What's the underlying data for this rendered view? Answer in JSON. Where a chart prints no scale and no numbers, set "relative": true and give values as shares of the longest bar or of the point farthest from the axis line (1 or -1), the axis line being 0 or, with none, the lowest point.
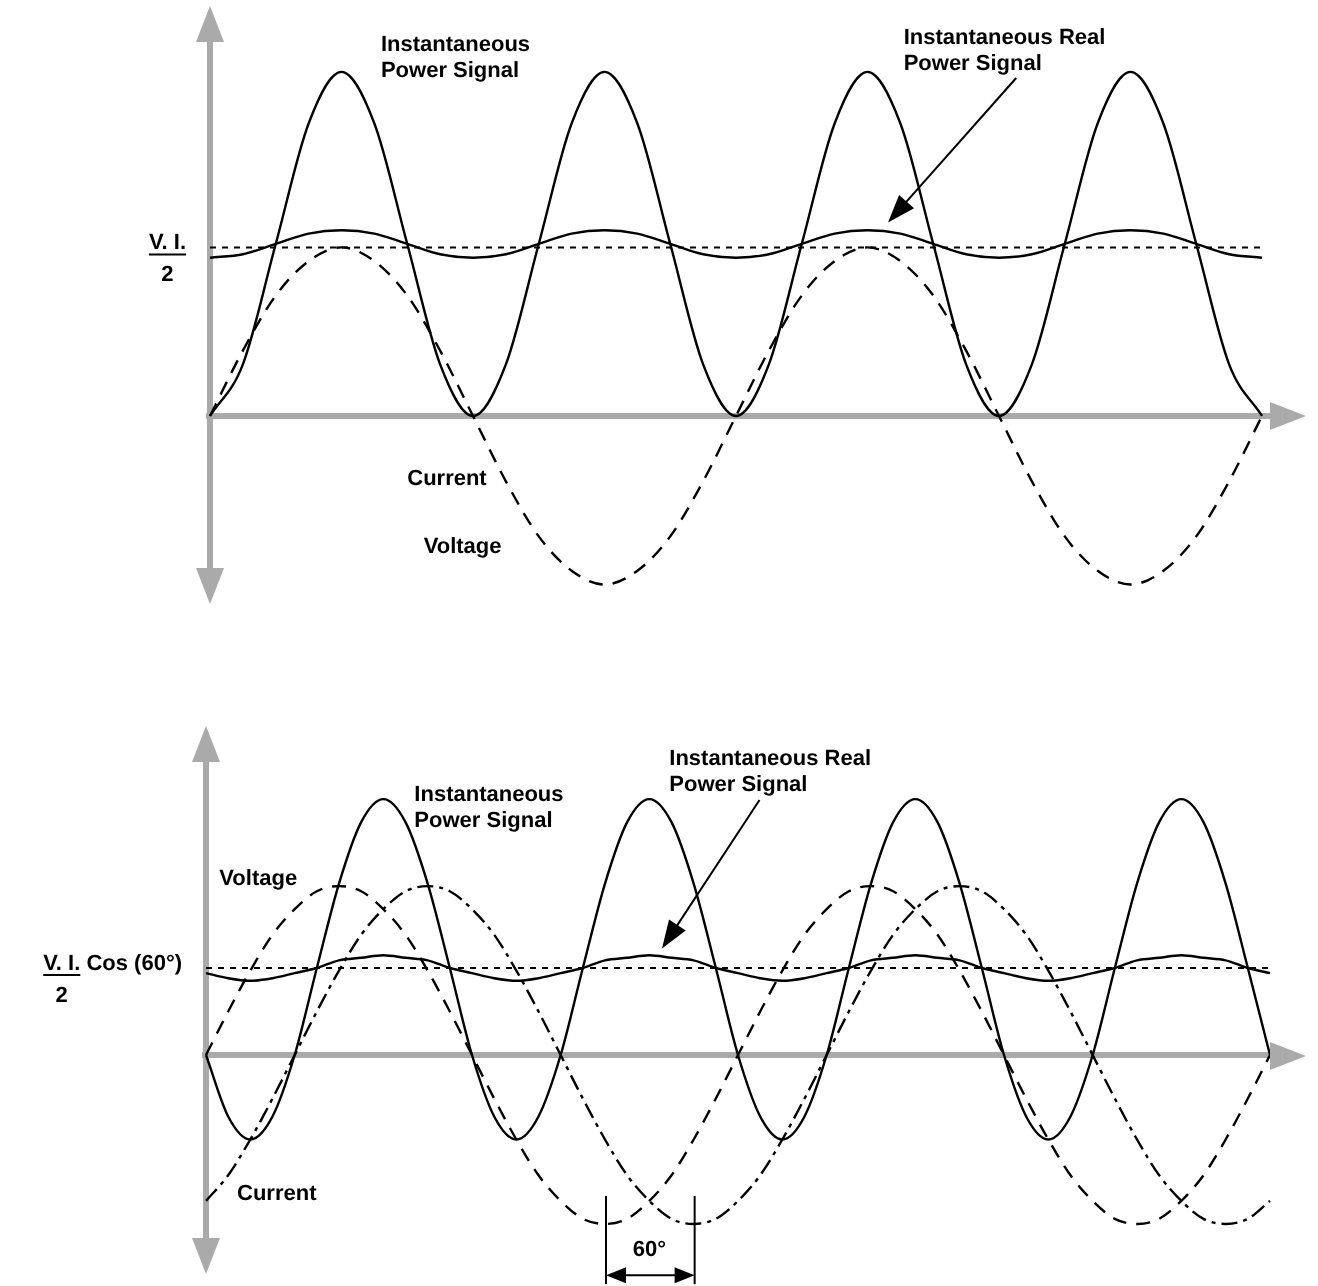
{
  "chart_data": [
    {
      "type": "line",
      "relative": true,
      "legend": false,
      "categories": [
        null,
        null,
        null,
        null,
        null,
        null,
        null,
        null,
        null,
        null,
        null,
        null,
        null,
        null,
        null,
        null,
        null,
        null,
        null,
        null,
        null,
        null,
        null,
        null,
        null,
        null,
        null,
        null,
        null,
        null,
        null,
        null,
        null
      ],
      "series": [
        {
          "name": "Instantaneous Power Signal",
          "color": "#000000",
          "line_style": "solid",
          "values": [
            0,
            0.15,
            0.5,
            0.85,
            1,
            0.85,
            0.5,
            0.15,
            0,
            0.15,
            0.5,
            0.85,
            1,
            0.85,
            0.5,
            0.15,
            0,
            0.15,
            0.5,
            0.85,
            1,
            0.85,
            0.5,
            0.15,
            0,
            0.15,
            0.5,
            0.85,
            1,
            0.85,
            0.5,
            0.15,
            0
          ]
        },
        {
          "color": "#000000",
          "line_style": "solid",
          "values": [
            0.46,
            0.47,
            0.5,
            0.53,
            0.54,
            0.53,
            0.5,
            0.47,
            0.46,
            0.47,
            0.5,
            0.53,
            0.54,
            0.53,
            0.5,
            0.47,
            0.46,
            0.47,
            0.5,
            0.53,
            0.54,
            0.53,
            0.5,
            0.47,
            0.46,
            0.47,
            0.5,
            0.53,
            0.54,
            0.53,
            0.5,
            0.47,
            0.46
          ]
        },
        {
          "name": "Voltage",
          "color": "#000000",
          "line_style": "dashed",
          "values": [
            0,
            0.19,
            0.35,
            0.45,
            0.49,
            0.45,
            0.35,
            0.19,
            0,
            -0.19,
            -0.35,
            -0.45,
            -0.49,
            -0.45,
            -0.35,
            -0.19,
            0,
            0.19,
            0.35,
            0.45,
            0.49,
            0.45,
            0.35,
            0.19,
            0,
            -0.19,
            -0.35,
            -0.45,
            -0.49,
            -0.45,
            -0.35,
            -0.19,
            0
          ]
        }
      ],
      "ref_lines": [
        {
          "axis": "y",
          "value": 0.49,
          "label": "V. I.\n2",
          "line_style": "dashed",
          "color": "#000000"
        }
      ],
      "annotations": [
        "Current",
        "Instantaneous Real Power Signal"
      ]
    },
    {
      "type": "line",
      "relative": true,
      "legend": false,
      "categories": [
        null,
        null,
        null,
        null,
        null,
        null,
        null,
        null,
        null,
        null,
        null,
        null,
        null,
        null,
        null,
        null,
        null,
        null,
        null,
        null,
        null,
        null,
        null,
        null,
        null,
        null,
        null,
        null,
        null,
        null,
        null,
        null,
        null,
        null,
        null,
        null,
        null,
        null,
        null,
        null,
        null,
        null,
        null,
        null,
        null,
        null,
        null,
        null,
        null
      ],
      "series": [
        {
          "name": "Instantaneous Power Signal",
          "color": "#000000",
          "line_style": "solid",
          "values": [
            0,
            -0.24,
            -0.33,
            -0.24,
            0,
            0.34,
            0.67,
            0.91,
            1,
            0.91,
            0.67,
            0.34,
            0,
            -0.24,
            -0.33,
            -0.24,
            0,
            0.34,
            0.67,
            0.91,
            1,
            0.91,
            0.67,
            0.34,
            0,
            -0.24,
            -0.33,
            -0.24,
            0,
            0.34,
            0.67,
            0.91,
            1,
            0.91,
            0.67,
            0.34,
            0,
            -0.24,
            -0.33,
            -0.24,
            0,
            0.34,
            0.67,
            0.91,
            1,
            0.91,
            0.67,
            0.34,
            0
          ]
        },
        {
          "color": "#000000",
          "line_style": "solid",
          "values": [
            0.32,
            0.3,
            0.29,
            0.3,
            0.32,
            0.34,
            0.37,
            0.38,
            0.39,
            0.38,
            0.37,
            0.34,
            0.32,
            0.3,
            0.29,
            0.3,
            0.32,
            0.34,
            0.37,
            0.38,
            0.39,
            0.38,
            0.37,
            0.34,
            0.32,
            0.3,
            0.29,
            0.3,
            0.32,
            0.34,
            0.37,
            0.38,
            0.39,
            0.38,
            0.37,
            0.34,
            0.32,
            0.3,
            0.29,
            0.3,
            0.32,
            0.34,
            0.37,
            0.38,
            0.39,
            0.38,
            0.37,
            0.34,
            0.32
          ]
        },
        {
          "name": "Voltage",
          "color": "#000000",
          "line_style": "dashed",
          "values": [
            0,
            0.17,
            0.33,
            0.47,
            0.57,
            0.64,
            0.66,
            0.64,
            0.57,
            0.47,
            0.33,
            0.17,
            0,
            -0.17,
            -0.33,
            -0.47,
            -0.57,
            -0.64,
            -0.66,
            -0.64,
            -0.57,
            -0.47,
            -0.33,
            -0.17,
            0,
            0.17,
            0.33,
            0.47,
            0.57,
            0.64,
            0.66,
            0.64,
            0.57,
            0.47,
            0.33,
            0.17,
            0,
            -0.17,
            -0.33,
            -0.47,
            -0.57,
            -0.64,
            -0.66,
            -0.64,
            -0.57,
            -0.47,
            -0.33,
            -0.17,
            0
          ]
        },
        {
          "name": "Current",
          "color": "#000000",
          "line_style": "dotted",
          "values": [
            -0.57,
            -0.47,
            -0.33,
            -0.17,
            0,
            0.17,
            0.33,
            0.47,
            0.57,
            0.64,
            0.66,
            0.64,
            0.57,
            0.47,
            0.33,
            0.17,
            0,
            -0.17,
            -0.33,
            -0.47,
            -0.57,
            -0.64,
            -0.66,
            -0.64,
            -0.57,
            -0.47,
            -0.33,
            -0.17,
            0,
            0.17,
            0.33,
            0.47,
            0.57,
            0.64,
            0.66,
            0.64,
            0.57,
            0.47,
            0.33,
            0.17,
            0,
            -0.17,
            -0.33,
            -0.47,
            -0.57,
            -0.64,
            -0.66,
            -0.64,
            -0.57
          ]
        }
      ],
      "ref_lines": [
        {
          "axis": "y",
          "value": 0.34,
          "label": "V. I. Cos (60°)\n2",
          "line_style": "dashed",
          "color": "#000000"
        }
      ],
      "annotations": [
        "60°",
        "Instantaneous Real Power Signal"
      ]
    }
  ]
}
